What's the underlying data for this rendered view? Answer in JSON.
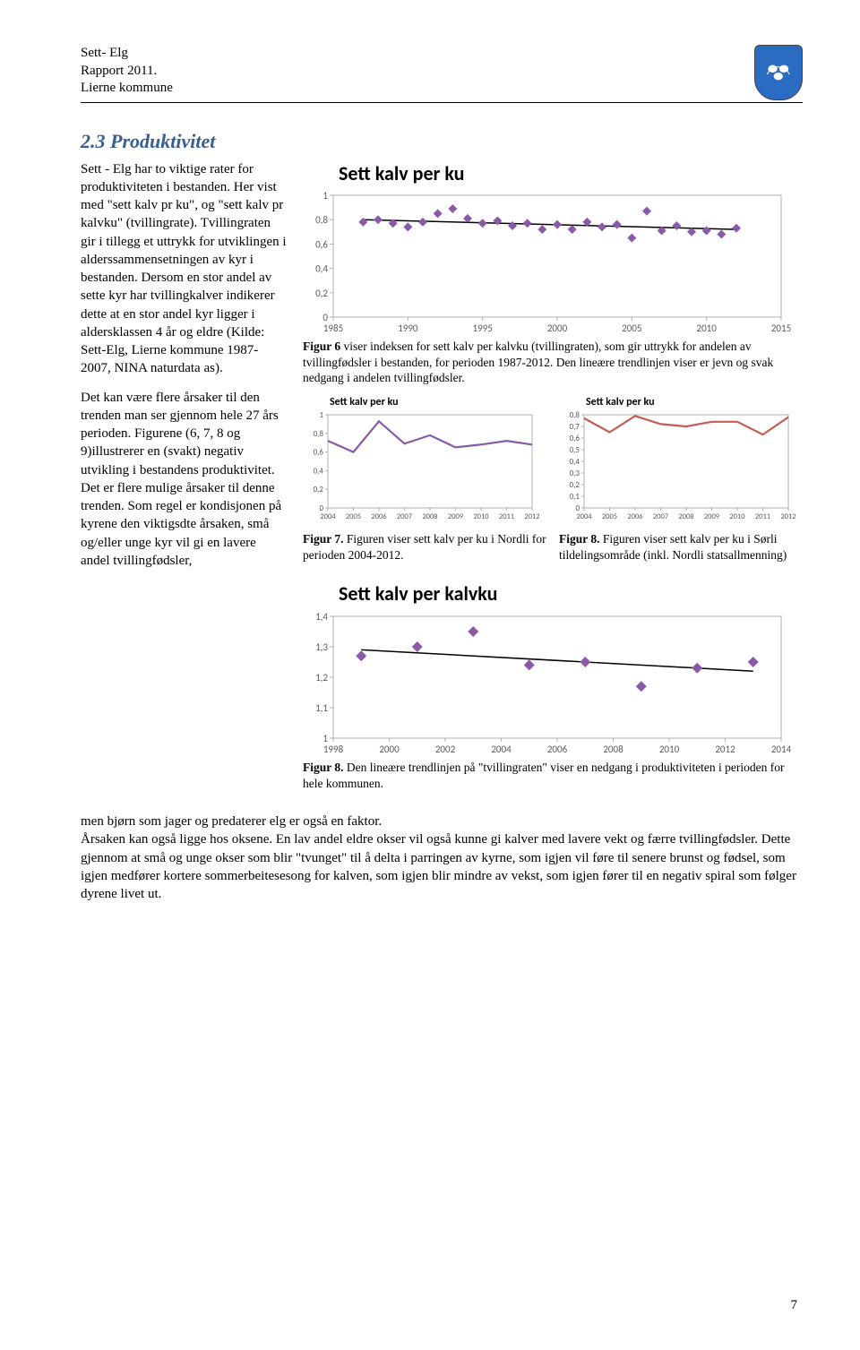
{
  "header": {
    "line1": "Sett- Elg",
    "line2": "Rapport 2011.",
    "line3": "Lierne kommune"
  },
  "section_title": "2.3 Produktivitet",
  "left_paras": [
    "Sett - Elg har to viktige rater for produktiviteten i bestanden. Her vist med \"sett kalv pr ku\", og \"sett kalv pr kalvku\" (tvillingrate). Tvillingraten gir i tillegg et uttrykk for utviklingen i alderssammensetningen av kyr i bestanden. Dersom en stor andel av sette kyr har tvillingkalver indikerer dette at en stor andel kyr ligger i aldersklassen 4 år og eldre (Kilde: Sett-Elg, Lierne kommune 1987-2007, NINA naturdata as).",
    "Det kan være flere årsaker til den trenden man ser gjennom hele 27 års perioden. Figurene (6, 7, 8 og 9)illustrerer en (svakt) negativ utvikling i bestandens produktivitet. Det er flere mulige årsaker til denne trenden. Som regel er kondisjonen på kyrene den viktigsdte årsaken, små og/eller unge kyr vil gi en lavere andel tvillingfødsler,"
  ],
  "bottom_text": "men bjørn som jager og predaterer elg er også en faktor.\nÅrsaken kan også ligge hos oksene. En lav andel eldre okser vil også kunne gi kalver med lavere vekt og færre tvillingfødsler. Dette gjennom at små og unge okser som blir \"tvunget\" til å delta i parringen av kyrne, som igjen vil føre til senere brunst og fødsel, som igjen medfører kortere sommerbeitesesong for kalven, som igjen blir mindre av vekst, som igjen fører til en negativ spiral som følger dyrene livet ut.",
  "page_num": "7",
  "chart_main": {
    "type": "scatter-with-trend",
    "title": "Sett kalv per ku",
    "title_fontsize": 22,
    "x_ticks": [
      1985,
      1990,
      1995,
      2000,
      2005,
      2010,
      2015
    ],
    "y_ticks": [
      0,
      0.2,
      0.4,
      0.6,
      0.8,
      1
    ],
    "xlim": [
      1985,
      2015
    ],
    "ylim": [
      0,
      1
    ],
    "marker_color": "#8a5aa8",
    "trend_color": "#000000",
    "background_color": "#ffffff",
    "border_color": "#b0b0b0",
    "tick_color": "#595959",
    "marker_size": 5,
    "font": "Calibri",
    "points": [
      [
        1987,
        0.78
      ],
      [
        1988,
        0.8
      ],
      [
        1989,
        0.77
      ],
      [
        1990,
        0.74
      ],
      [
        1991,
        0.78
      ],
      [
        1992,
        0.85
      ],
      [
        1993,
        0.89
      ],
      [
        1994,
        0.81
      ],
      [
        1995,
        0.77
      ],
      [
        1996,
        0.79
      ],
      [
        1997,
        0.75
      ],
      [
        1998,
        0.77
      ],
      [
        1999,
        0.72
      ],
      [
        2000,
        0.76
      ],
      [
        2001,
        0.72
      ],
      [
        2002,
        0.78
      ],
      [
        2003,
        0.74
      ],
      [
        2004,
        0.76
      ],
      [
        2005,
        0.65
      ],
      [
        2006,
        0.87
      ],
      [
        2007,
        0.71
      ],
      [
        2008,
        0.75
      ],
      [
        2009,
        0.7
      ],
      [
        2010,
        0.71
      ],
      [
        2011,
        0.68
      ],
      [
        2012,
        0.73
      ]
    ],
    "trend_start": [
      1987,
      0.8
    ],
    "trend_end": [
      2012,
      0.72
    ]
  },
  "caption_main": {
    "bold": "Figur 6",
    "text": "  viser indeksen for sett kalv per kalvku (tvillingraten), som gir uttrykk for andelen av tvillingfødsler i bestanden, for perioden 1987-2012. Den lineære trendlinjen viser er jevn og svak nedgang i andelen tvillingfødsler."
  },
  "chart_mini_1": {
    "type": "line",
    "title": "Sett kalv per ku",
    "x_labels": [
      "2004",
      "2005",
      "2006",
      "2007",
      "2008",
      "2009",
      "2010",
      "2011",
      "2012"
    ],
    "y_ticks": [
      0,
      0.2,
      0.4,
      0.6,
      0.8,
      1
    ],
    "ylim": [
      0,
      1
    ],
    "line_color": "#8a5aa8",
    "border_color": "#b0b0b0",
    "values": [
      0.72,
      0.6,
      0.93,
      0.69,
      0.78,
      0.65,
      0.68,
      0.72,
      0.68
    ]
  },
  "caption_mini_1": {
    "bold": "Figur 7.",
    "text": " Figuren viser sett kalv per ku i Nordli for perioden 2004-2012."
  },
  "chart_mini_2": {
    "type": "line",
    "title": "Sett kalv per ku",
    "x_labels": [
      "2004",
      "2005",
      "2006",
      "2007",
      "2008",
      "2009",
      "2010",
      "2011",
      "2012"
    ],
    "y_ticks": [
      0,
      0.1,
      0.2,
      0.3,
      0.4,
      0.5,
      0.6,
      0.7,
      0.8
    ],
    "ylim": [
      0,
      0.8
    ],
    "line_color": "#c55b55",
    "border_color": "#b0b0b0",
    "values": [
      0.77,
      0.65,
      0.79,
      0.72,
      0.7,
      0.74,
      0.74,
      0.63,
      0.78
    ]
  },
  "caption_mini_2": {
    "bold": "Figur 8.",
    "text": " Figuren viser sett kalv per ku i Sørli tildelingsområde (inkl. Nordli statsallmenning)"
  },
  "chart_bottom": {
    "type": "scatter-with-trend",
    "title": "Sett kalv per kalvku",
    "title_fontsize": 22,
    "x_ticks": [
      1998,
      2000,
      2002,
      2004,
      2006,
      2008,
      2010,
      2012,
      2014
    ],
    "y_ticks": [
      1,
      1.1,
      1.2,
      1.3,
      1.4
    ],
    "xlim": [
      1998,
      2014
    ],
    "ylim": [
      1,
      1.4
    ],
    "marker_color": "#8a5aa8",
    "trend_color": "#000000",
    "border_color": "#b0b0b0",
    "marker_size": 6,
    "points": [
      [
        1999,
        1.27
      ],
      [
        2001,
        1.3
      ],
      [
        2003,
        1.35
      ],
      [
        2005,
        1.24
      ],
      [
        2007,
        1.25
      ],
      [
        2009,
        1.17
      ],
      [
        2011,
        1.23
      ],
      [
        2013,
        1.25
      ]
    ],
    "trend_start": [
      1999,
      1.29
    ],
    "trend_end": [
      2013,
      1.22
    ]
  },
  "caption_bottom": {
    "bold": "Figur 8.",
    "text": " Den lineære trendlinjen på \"tvillingraten\" viser en nedgang i produktiviteten i perioden for hele kommunen."
  }
}
